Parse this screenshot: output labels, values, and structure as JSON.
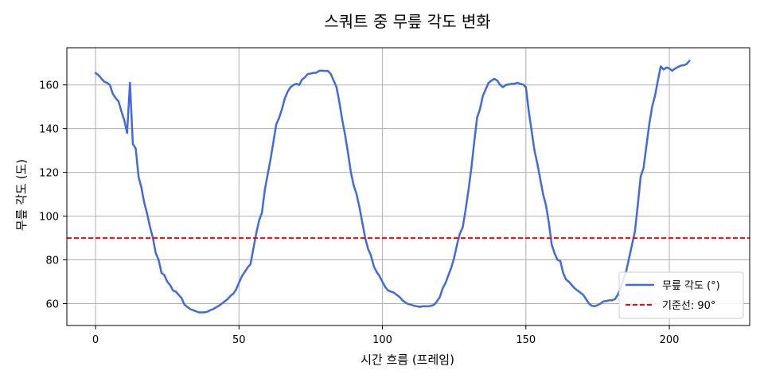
{
  "chart_data": {
    "type": "line",
    "title": "스쿼트 중 무릎 각도 변화",
    "xlabel": "시간 흐름 (프레임)",
    "ylabel": "무릎 각도 (도)",
    "xlim": [
      -10,
      228
    ],
    "ylim": [
      50,
      177
    ],
    "xticks": [
      0,
      50,
      100,
      150,
      200
    ],
    "yticks": [
      60,
      80,
      100,
      120,
      140,
      160
    ],
    "grid": true,
    "legend_position": "lower-right",
    "series": [
      {
        "name": "무릎 각도 (°)",
        "color": "#4169E1",
        "style": "solid",
        "points": [
          [
            0,
            165.5
          ],
          [
            1,
            164.5
          ],
          [
            2,
            163
          ],
          [
            3,
            161.5
          ],
          [
            4,
            161
          ],
          [
            5,
            160
          ],
          [
            6,
            156
          ],
          [
            7,
            154
          ],
          [
            8,
            152.5
          ],
          [
            9,
            148
          ],
          [
            10,
            144
          ],
          [
            11,
            138
          ],
          [
            12,
            161
          ],
          [
            13,
            133
          ],
          [
            14,
            131
          ],
          [
            15,
            118
          ],
          [
            16,
            113
          ],
          [
            17,
            106
          ],
          [
            18,
            101
          ],
          [
            19,
            95
          ],
          [
            20,
            90
          ],
          [
            21,
            83
          ],
          [
            22,
            80
          ],
          [
            23,
            74
          ],
          [
            24,
            73
          ],
          [
            25,
            70
          ],
          [
            26,
            68.5
          ],
          [
            27,
            66
          ],
          [
            28,
            65.5
          ],
          [
            29,
            64
          ],
          [
            30,
            62.5
          ],
          [
            31,
            59.5
          ],
          [
            32,
            58.5
          ],
          [
            33,
            57.5
          ],
          [
            34,
            57
          ],
          [
            35,
            56.5
          ],
          [
            36,
            56
          ],
          [
            37,
            56
          ],
          [
            38,
            56
          ],
          [
            39,
            56.3
          ],
          [
            40,
            57
          ],
          [
            41,
            57.5
          ],
          [
            42,
            58.3
          ],
          [
            43,
            59
          ],
          [
            44,
            60
          ],
          [
            45,
            61
          ],
          [
            46,
            62
          ],
          [
            47,
            63.5
          ],
          [
            48,
            64.5
          ],
          [
            49,
            66.5
          ],
          [
            50,
            69.5
          ],
          [
            51,
            72.5
          ],
          [
            52,
            74.5
          ],
          [
            53,
            76.5
          ],
          [
            54,
            78
          ],
          [
            55,
            85
          ],
          [
            56,
            92
          ],
          [
            57,
            98
          ],
          [
            58,
            101.5
          ],
          [
            59,
            112
          ],
          [
            60,
            119
          ],
          [
            61,
            126
          ],
          [
            62,
            134
          ],
          [
            63,
            142
          ],
          [
            64,
            145
          ],
          [
            65,
            149
          ],
          [
            66,
            154
          ],
          [
            67,
            157
          ],
          [
            68,
            159
          ],
          [
            69,
            160
          ],
          [
            70,
            160.5
          ],
          [
            71,
            160
          ],
          [
            72,
            162.5
          ],
          [
            73,
            163.5
          ],
          [
            74,
            165
          ],
          [
            75,
            165.2
          ],
          [
            76,
            165.5
          ],
          [
            77,
            165.6
          ],
          [
            78,
            166.5
          ],
          [
            79,
            166.5
          ],
          [
            80,
            166.4
          ],
          [
            81,
            166.4
          ],
          [
            82,
            165
          ],
          [
            83,
            162
          ],
          [
            84,
            159
          ],
          [
            85,
            152
          ],
          [
            86,
            144
          ],
          [
            87,
            137
          ],
          [
            88,
            129
          ],
          [
            89,
            120
          ],
          [
            90,
            114
          ],
          [
            91,
            110
          ],
          [
            92,
            104
          ],
          [
            93,
            97
          ],
          [
            94,
            90
          ],
          [
            95,
            85
          ],
          [
            96,
            82
          ],
          [
            97,
            77
          ],
          [
            98,
            74.5
          ],
          [
            99,
            72.5
          ],
          [
            100,
            70
          ],
          [
            101,
            67.5
          ],
          [
            102,
            66
          ],
          [
            103,
            65.5
          ],
          [
            104,
            65
          ],
          [
            105,
            64
          ],
          [
            106,
            63
          ],
          [
            107,
            61.5
          ],
          [
            108,
            60.5
          ],
          [
            109,
            59.8
          ],
          [
            110,
            59.5
          ],
          [
            111,
            59
          ],
          [
            112,
            58.8
          ],
          [
            113,
            58.5
          ],
          [
            114,
            58.8
          ],
          [
            115,
            58.8
          ],
          [
            116,
            58.8
          ],
          [
            117,
            59
          ],
          [
            118,
            59.5
          ],
          [
            119,
            61
          ],
          [
            120,
            63
          ],
          [
            121,
            67
          ],
          [
            122,
            69.5
          ],
          [
            123,
            73
          ],
          [
            124,
            76.5
          ],
          [
            125,
            81
          ],
          [
            126,
            87
          ],
          [
            127,
            92
          ],
          [
            128,
            95
          ],
          [
            129,
            103
          ],
          [
            130,
            112
          ],
          [
            131,
            122
          ],
          [
            132,
            134
          ],
          [
            133,
            145
          ],
          [
            134,
            149
          ],
          [
            135,
            155
          ],
          [
            136,
            158
          ],
          [
            137,
            161
          ],
          [
            138,
            162
          ],
          [
            139,
            162.8
          ],
          [
            140,
            162
          ],
          [
            141,
            160
          ],
          [
            142,
            159
          ],
          [
            143,
            160
          ],
          [
            144,
            160.2
          ],
          [
            145,
            160.5
          ],
          [
            146,
            160.5
          ],
          [
            147,
            161
          ],
          [
            148,
            160.5
          ],
          [
            149,
            160.2
          ],
          [
            150,
            159
          ],
          [
            151,
            148
          ],
          [
            152,
            139
          ],
          [
            153,
            130
          ],
          [
            154,
            124
          ],
          [
            155,
            117
          ],
          [
            156,
            110
          ],
          [
            157,
            105
          ],
          [
            158,
            97
          ],
          [
            159,
            87
          ],
          [
            160,
            83
          ],
          [
            161,
            80
          ],
          [
            162,
            79.5
          ],
          [
            163,
            74
          ],
          [
            164,
            71
          ],
          [
            165,
            70
          ],
          [
            166,
            68.5
          ],
          [
            167,
            67
          ],
          [
            168,
            66
          ],
          [
            169,
            65
          ],
          [
            170,
            64
          ],
          [
            171,
            62
          ],
          [
            172,
            60
          ],
          [
            173,
            59
          ],
          [
            174,
            58.8
          ],
          [
            175,
            59.3
          ],
          [
            176,
            60
          ],
          [
            177,
            61
          ],
          [
            178,
            61.2
          ],
          [
            179,
            61.5
          ],
          [
            180,
            61.5
          ],
          [
            181,
            62
          ],
          [
            182,
            64
          ],
          [
            183,
            67
          ],
          [
            184,
            71
          ],
          [
            185,
            75
          ],
          [
            186,
            81
          ],
          [
            187,
            87
          ],
          [
            188,
            93
          ],
          [
            189,
            105
          ],
          [
            190,
            118
          ],
          [
            191,
            122
          ],
          [
            192,
            132
          ],
          [
            193,
            142
          ],
          [
            194,
            150
          ],
          [
            195,
            155
          ],
          [
            196,
            162
          ],
          [
            197,
            168.5
          ],
          [
            198,
            167
          ],
          [
            199,
            168
          ],
          [
            200,
            167.5
          ],
          [
            201,
            166.5
          ],
          [
            202,
            167.5
          ],
          [
            203,
            168.2
          ],
          [
            204,
            168.8
          ],
          [
            205,
            169
          ],
          [
            206,
            169.5
          ],
          [
            207,
            171
          ]
        ]
      },
      {
        "name": "기준선: 90°",
        "color": "#FF0000",
        "style": "dashed",
        "y": 90
      }
    ]
  }
}
